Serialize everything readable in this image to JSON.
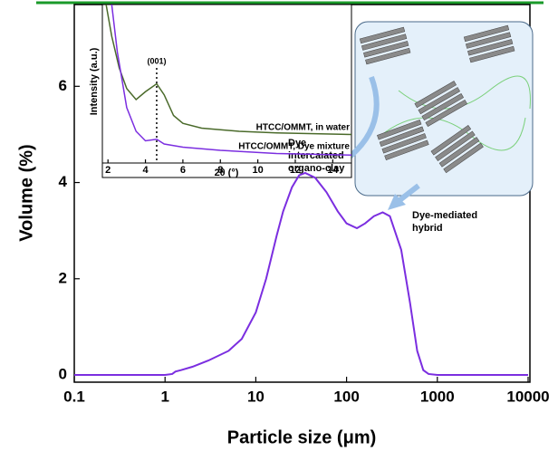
{
  "chart_data": [
    {
      "type": "line",
      "x_label": "Particle size (μm)",
      "y_label": "Volume (%)",
      "xscale": "log",
      "xlim": [
        0.1,
        10000
      ],
      "xticks": [
        0.1,
        1,
        10,
        100,
        1000,
        10000
      ],
      "ylim": [
        -0.15,
        7.7
      ],
      "yticks": [
        0,
        2,
        4,
        6
      ],
      "series": [
        {
          "color": "#7b2ee0",
          "x": [
            0.1,
            1,
            1.2,
            1.3,
            1.5,
            2,
            3,
            5,
            7,
            10,
            13,
            17,
            20,
            25,
            30,
            35,
            45,
            60,
            80,
            100,
            130,
            160,
            200,
            250,
            300,
            400,
            500,
            600,
            700,
            800,
            1000,
            10000
          ],
          "values": [
            0,
            0,
            0.02,
            0.07,
            0.1,
            0.17,
            0.3,
            0.5,
            0.75,
            1.3,
            2.0,
            2.9,
            3.4,
            3.9,
            4.15,
            4.2,
            4.1,
            3.8,
            3.4,
            3.15,
            3.05,
            3.15,
            3.3,
            3.38,
            3.3,
            2.6,
            1.5,
            0.5,
            0.1,
            0.02,
            0,
            0
          ]
        }
      ],
      "annotations": [
        [
          "Dye",
          "intercalated",
          "organo-clay"
        ],
        [
          "Dye-mediated",
          "hybrid"
        ]
      ]
    },
    {
      "type": "line",
      "x_label": "2θ (°)",
      "y_label": "Intensity (a.u.)",
      "xlim": [
        1.7,
        15
      ],
      "xticks": [
        2,
        4,
        6,
        8,
        10,
        12,
        14
      ],
      "ylim": [
        0,
        1
      ],
      "peak_label": "(001)",
      "peak_x": 4.6,
      "series": [
        {
          "name": "HTCC/OMMT, in water",
          "color": "#4a6a2a",
          "x": [
            1.9,
            2.2,
            2.6,
            3.0,
            3.5,
            4.0,
            4.6,
            5.0,
            5.5,
            6,
            7,
            9,
            11,
            15
          ],
          "values": [
            1.0,
            0.8,
            0.6,
            0.47,
            0.4,
            0.45,
            0.5,
            0.43,
            0.3,
            0.25,
            0.22,
            0.2,
            0.19,
            0.18
          ]
        },
        {
          "name": "HTCC/OMMT, Dye mixture",
          "color": "#7b2ee0",
          "x": [
            2.2,
            2.5,
            3,
            3.5,
            4,
            4.6,
            5,
            6,
            8,
            11,
            15
          ],
          "values": [
            1.0,
            0.7,
            0.35,
            0.2,
            0.14,
            0.15,
            0.12,
            0.1,
            0.08,
            0.06,
            0.05
          ]
        }
      ]
    }
  ]
}
